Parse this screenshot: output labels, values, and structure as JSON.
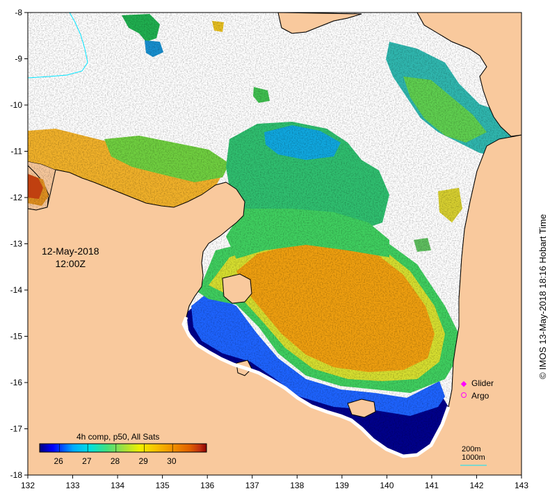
{
  "map": {
    "lon_range": [
      132,
      143
    ],
    "lat_range": [
      -18,
      -8
    ],
    "x_ticks": [
      "132",
      "133",
      "134",
      "135",
      "136",
      "137",
      "138",
      "139",
      "140",
      "141",
      "142",
      "143"
    ],
    "y_ticks": [
      "-8",
      "-9",
      "-10",
      "-11",
      "-12",
      "-13",
      "-14",
      "-15",
      "-16",
      "-17",
      "-18"
    ],
    "colors": {
      "land": "#f9c99d",
      "ocean_nodata": "#ffffff",
      "coastline": "#000000",
      "river": "#00e5ff"
    }
  },
  "date": {
    "line1": "12-May-2018",
    "line2": "12:00Z"
  },
  "colorbar": {
    "title": "4h comp, p50, All Sats",
    "ticks": [
      "26",
      "27",
      "28",
      "29",
      "30"
    ],
    "range": [
      25.3,
      31.2
    ],
    "colors": [
      "#000080",
      "#0000ff",
      "#00aaff",
      "#00e0e0",
      "#40e080",
      "#a0e040",
      "#f0f000",
      "#f8c000",
      "#f09000",
      "#e06000",
      "#c03010",
      "#8b0000"
    ]
  },
  "legend": {
    "items": [
      {
        "label": "Glider",
        "marker": "diamond-icon",
        "color": "#ff00ff"
      },
      {
        "label": "Argo",
        "marker": "circle-icon",
        "color": "#ff00ff"
      }
    ]
  },
  "scale": {
    "line1": "200m",
    "line2": "1000m"
  },
  "credit": "© IMOS 13-May-2018 18:16 Hobart Time"
}
